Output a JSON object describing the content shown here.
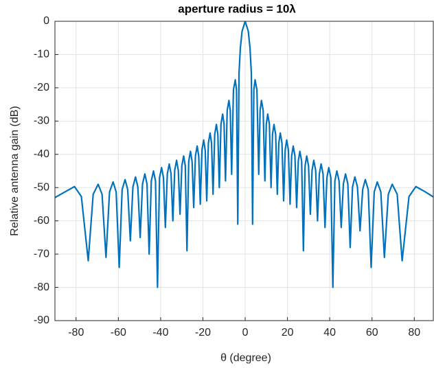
{
  "chart_data": {
    "type": "line",
    "title": "aperture radius = 10λ",
    "xlabel": "θ (degree)",
    "ylabel": "Relative antenna gain (dB)",
    "xlim": [
      -90,
      89
    ],
    "ylim": [
      -90,
      0
    ],
    "xticks": [
      -80,
      -60,
      -40,
      -20,
      0,
      20,
      40,
      60,
      80
    ],
    "yticks": [
      -90,
      -80,
      -70,
      -60,
      -50,
      -40,
      -30,
      -20,
      -10,
      0
    ],
    "grid": true,
    "x": [
      -90,
      -85,
      -80.75,
      -77.5,
      -74.25,
      -71.91,
      -69.56,
      -67.71,
      -65.85,
      -64.17,
      -62.48,
      -61.04,
      -59.59,
      -58.21,
      -56.82,
      -55.58,
      -54.33,
      -53.11,
      -51.89,
      -50.78,
      -49.67,
      -48.57,
      -47.47,
      -46.45,
      -45.43,
      -44.41,
      -43.38,
      -42.43,
      -41.48,
      -40.52,
      -39.55,
      -38.66,
      -37.76,
      -36.84,
      -35.92,
      -35.07,
      -34.22,
      -33.34,
      -32.45,
      -31.64,
      -30.82,
      -29.97,
      -29.11,
      -28.33,
      -27.54,
      -26.71,
      -25.88,
      -25.12,
      -24.35,
      -23.54,
      -22.72,
      -21.98,
      -21.24,
      -20.44,
      -19.64,
      -18.92,
      -18.19,
      -17.4,
      -16.61,
      -15.91,
      -15.2,
      -14.41,
      -13.62,
      -12.93,
      -12.24,
      -11.45,
      -10.66,
      -9.99,
      -9.32,
      -8.51,
      -7.7,
      -7.06,
      -6.41,
      -5.55,
      -4.69,
      -4.1,
      -3.5,
      -2.92,
      -2.28,
      -1.47,
      0,
      1.47,
      2.28,
      2.92,
      3.5,
      4.1,
      4.69,
      5.55,
      6.41,
      7.06,
      7.7,
      8.51,
      9.32,
      9.99,
      10.66,
      11.45,
      12.24,
      12.93,
      13.62,
      14.41,
      15.2,
      15.91,
      16.61,
      17.4,
      18.19,
      18.92,
      19.64,
      20.44,
      21.24,
      21.98,
      22.72,
      23.54,
      24.35,
      25.12,
      25.88,
      26.71,
      27.54,
      28.33,
      29.11,
      29.97,
      30.82,
      31.64,
      32.45,
      33.34,
      34.22,
      35.07,
      35.92,
      36.84,
      37.76,
      38.66,
      39.55,
      40.52,
      41.48,
      42.43,
      43.38,
      44.41,
      45.43,
      46.45,
      47.47,
      48.57,
      49.67,
      50.78,
      51.89,
      53.11,
      54.33,
      55.58,
      56.82,
      58.21,
      59.59,
      61.04,
      62.48,
      64.17,
      65.85,
      67.71,
      69.56,
      71.91,
      74.25,
      77.5,
      80.75,
      85,
      89
    ],
    "series": [
      {
        "name": "gain",
        "color": "#0072bd",
        "values": [
          -53,
          -51.2,
          -49.7,
          -52.7,
          -72,
          -52,
          -49,
          -52,
          -71,
          -51.3,
          -48.3,
          -51.3,
          -74,
          -50.6,
          -47.6,
          -50.6,
          -66,
          -49.8,
          -46.8,
          -49.8,
          -65,
          -48.9,
          -45.9,
          -48.9,
          -70,
          -48,
          -45,
          -48,
          -80,
          -47,
          -44,
          -47,
          -62,
          -45.9,
          -42.9,
          -45.9,
          -60,
          -44.8,
          -41.8,
          -44.8,
          -58,
          -43.5,
          -40.5,
          -43.5,
          -69,
          -42.1,
          -39.1,
          -42.1,
          -56,
          -40.5,
          -37.5,
          -40.5,
          -55,
          -38.7,
          -35.7,
          -38.7,
          -54,
          -36.6,
          -33.6,
          -36.6,
          -52,
          -34,
          -31,
          -34,
          -50,
          -30.9,
          -27.9,
          -30.9,
          -48,
          -26.8,
          -23.8,
          -26.8,
          -46,
          -20.6,
          -17.6,
          -20.6,
          -61,
          -15.7,
          -8,
          -3,
          0,
          -3,
          -8,
          -15.7,
          -61,
          -20.6,
          -17.6,
          -20.6,
          -46,
          -26.8,
          -23.8,
          -26.8,
          -48,
          -30.9,
          -27.9,
          -30.9,
          -50,
          -34,
          -31,
          -34,
          -52,
          -36.6,
          -33.6,
          -36.6,
          -54,
          -38.7,
          -35.7,
          -38.7,
          -55,
          -40.5,
          -37.5,
          -40.5,
          -56,
          -42.1,
          -39.1,
          -42.1,
          -69,
          -43.5,
          -40.5,
          -43.5,
          -58,
          -44.8,
          -41.8,
          -44.8,
          -60,
          -45.9,
          -42.9,
          -45.9,
          -62,
          -47,
          -44,
          -47,
          -80,
          -48,
          -45,
          -48,
          -62,
          -48.9,
          -45.9,
          -48.9,
          -68,
          -49.8,
          -46.8,
          -49.8,
          -63,
          -50.6,
          -47.6,
          -50.6,
          -74,
          -51.3,
          -48.3,
          -51.3,
          -71,
          -52,
          -49,
          -52,
          -72,
          -52.7,
          -49.7,
          -51.2,
          -52.8
        ]
      }
    ]
  }
}
